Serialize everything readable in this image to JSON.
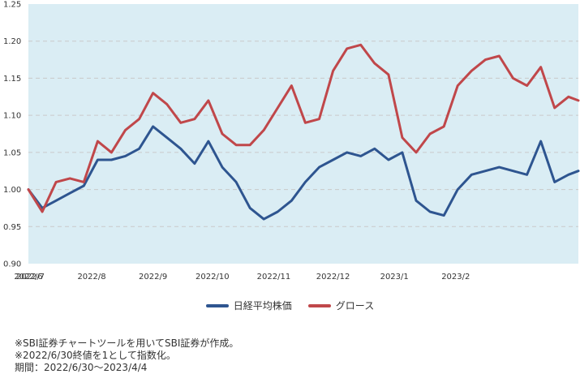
{
  "chart_data": {
    "type": "line",
    "title": "",
    "xlabel": "",
    "ylabel": "",
    "ylim": [
      0.9,
      1.25
    ],
    "yticks": [
      "1.25",
      "1.20",
      "1.15",
      "1.10",
      "1.05",
      "1.00",
      "0.95",
      "0.90"
    ],
    "xticks": [
      "2022/6",
      "2022/7",
      "2022/8",
      "2022/9",
      "2022/10",
      "2022/11",
      "2022/12",
      "2023/1",
      "2023/2"
    ],
    "x": [
      "2022/6/30",
      "2022/7/7",
      "2022/7/14",
      "2022/7/21",
      "2022/7/28",
      "2022/8/4",
      "2022/8/11",
      "2022/8/18",
      "2022/8/25",
      "2022/9/1",
      "2022/9/8",
      "2022/9/15",
      "2022/9/22",
      "2022/9/29",
      "2022/10/6",
      "2022/10/13",
      "2022/10/20",
      "2022/10/27",
      "2022/11/3",
      "2022/11/10",
      "2022/11/17",
      "2022/11/24",
      "2022/12/1",
      "2022/12/8",
      "2022/12/15",
      "2022/12/22",
      "2022/12/29",
      "2023/1/5",
      "2023/1/12",
      "2023/1/19",
      "2023/1/26",
      "2023/2/2",
      "2023/2/9",
      "2023/2/16",
      "2023/2/23",
      "2023/3/2",
      "2023/3/9",
      "2023/3/16",
      "2023/3/23",
      "2023/3/30",
      "2023/4/4"
    ],
    "grid": true,
    "legend_position": "bottom",
    "series": [
      {
        "name": "日経平均株価",
        "color": "#2e5590",
        "values": [
          1.0,
          0.975,
          0.985,
          0.995,
          1.005,
          1.04,
          1.04,
          1.045,
          1.055,
          1.085,
          1.07,
          1.055,
          1.035,
          1.065,
          1.03,
          1.01,
          0.975,
          0.96,
          0.97,
          0.985,
          1.01,
          1.03,
          1.04,
          1.05,
          1.045,
          1.055,
          1.04,
          1.05,
          0.985,
          0.97,
          0.965,
          1.0,
          1.02,
          1.025,
          1.03,
          1.025,
          1.02,
          1.065,
          1.01,
          1.02,
          1.025
        ]
      },
      {
        "name": "グロース",
        "color": "#c0474a",
        "values": [
          1.0,
          0.97,
          1.01,
          1.015,
          1.01,
          1.065,
          1.05,
          1.08,
          1.095,
          1.13,
          1.115,
          1.09,
          1.095,
          1.12,
          1.075,
          1.06,
          1.06,
          1.08,
          1.11,
          1.14,
          1.09,
          1.095,
          1.16,
          1.19,
          1.195,
          1.17,
          1.155,
          1.07,
          1.05,
          1.075,
          1.085,
          1.14,
          1.16,
          1.175,
          1.18,
          1.15,
          1.14,
          1.165,
          1.11,
          1.125,
          1.12
        ]
      }
    ]
  },
  "notes": [
    "※SBI証券チャートツールを用いてSBI証券が作成。",
    "※2022/6/30終値を1として指数化。",
    "期間：2022/6/30〜2023/4/4"
  ]
}
